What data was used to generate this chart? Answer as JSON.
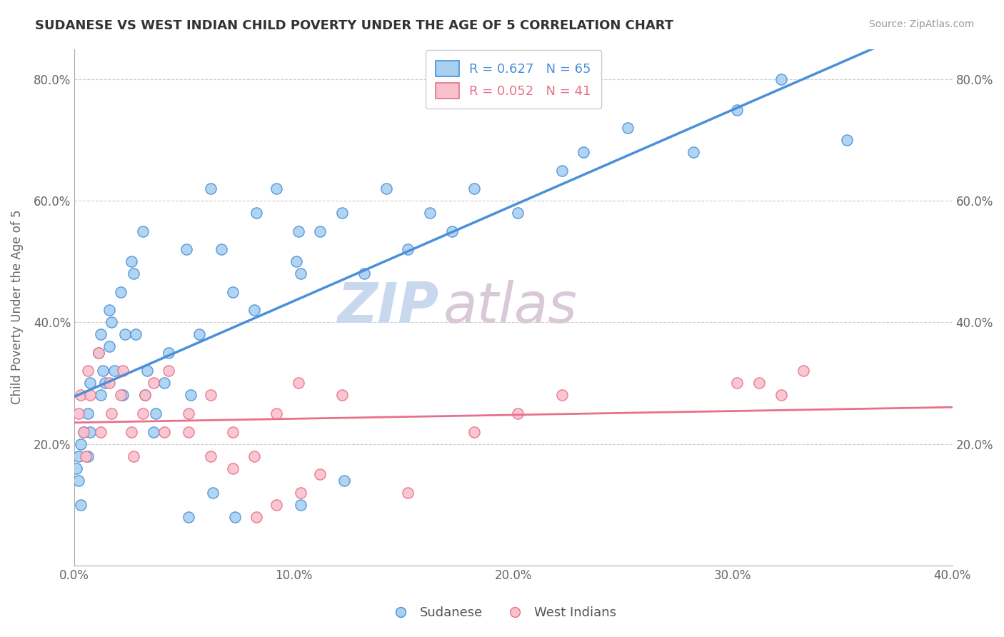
{
  "title": "SUDANESE VS WEST INDIAN CHILD POVERTY UNDER THE AGE OF 5 CORRELATION CHART",
  "source": "Source: ZipAtlas.com",
  "ylabel_label": "Child Poverty Under the Age of 5",
  "xlim": [
    0.0,
    0.4
  ],
  "ylim": [
    0.0,
    0.85
  ],
  "xtick_labels": [
    "0.0%",
    "10.0%",
    "20.0%",
    "30.0%",
    "40.0%"
  ],
  "xtick_values": [
    0.0,
    0.1,
    0.2,
    0.3,
    0.4
  ],
  "ytick_labels": [
    "20.0%",
    "40.0%",
    "60.0%",
    "80.0%"
  ],
  "ytick_values": [
    0.2,
    0.4,
    0.6,
    0.8
  ],
  "sudanese_color": "#A8D0F0",
  "west_indian_color": "#F9C0CC",
  "sudanese_line_color": "#4A90D9",
  "west_indian_line_color": "#E8708A",
  "R_sudanese": 0.627,
  "N_sudanese": 65,
  "R_west_indian": 0.052,
  "N_west_indian": 41,
  "watermark_zip": "ZIP",
  "watermark_atlas": "atlas",
  "watermark_color_zip": "#C8D8EE",
  "watermark_color_atlas": "#D8C8D8",
  "legend_label_sudanese": "Sudanese",
  "legend_label_west_indian": "West Indians",
  "sudanese_x": [
    0.002,
    0.003,
    0.004,
    0.001,
    0.002,
    0.003,
    0.006,
    0.007,
    0.006,
    0.007,
    0.012,
    0.011,
    0.013,
    0.012,
    0.014,
    0.016,
    0.017,
    0.016,
    0.018,
    0.021,
    0.022,
    0.023,
    0.026,
    0.027,
    0.028,
    0.031,
    0.032,
    0.033,
    0.036,
    0.037,
    0.041,
    0.043,
    0.051,
    0.053,
    0.057,
    0.062,
    0.067,
    0.072,
    0.082,
    0.083,
    0.092,
    0.101,
    0.102,
    0.103,
    0.112,
    0.122,
    0.132,
    0.142,
    0.152,
    0.162,
    0.172,
    0.182,
    0.202,
    0.222,
    0.232,
    0.252,
    0.282,
    0.302,
    0.322,
    0.352,
    0.103,
    0.123,
    0.052,
    0.063,
    0.073
  ],
  "sudanese_y": [
    0.18,
    0.2,
    0.22,
    0.16,
    0.14,
    0.1,
    0.25,
    0.22,
    0.18,
    0.3,
    0.28,
    0.35,
    0.32,
    0.38,
    0.3,
    0.42,
    0.4,
    0.36,
    0.32,
    0.45,
    0.28,
    0.38,
    0.5,
    0.48,
    0.38,
    0.55,
    0.28,
    0.32,
    0.22,
    0.25,
    0.3,
    0.35,
    0.52,
    0.28,
    0.38,
    0.62,
    0.52,
    0.45,
    0.42,
    0.58,
    0.62,
    0.5,
    0.55,
    0.48,
    0.55,
    0.58,
    0.48,
    0.62,
    0.52,
    0.58,
    0.55,
    0.62,
    0.58,
    0.65,
    0.68,
    0.72,
    0.68,
    0.75,
    0.8,
    0.7,
    0.1,
    0.14,
    0.08,
    0.12,
    0.08
  ],
  "west_indian_x": [
    0.002,
    0.003,
    0.004,
    0.005,
    0.006,
    0.007,
    0.011,
    0.012,
    0.016,
    0.017,
    0.021,
    0.022,
    0.026,
    0.027,
    0.031,
    0.032,
    0.036,
    0.041,
    0.043,
    0.052,
    0.062,
    0.072,
    0.082,
    0.092,
    0.102,
    0.122,
    0.152,
    0.182,
    0.202,
    0.222,
    0.302,
    0.312,
    0.322,
    0.332,
    0.083,
    0.092,
    0.103,
    0.112,
    0.052,
    0.062,
    0.072
  ],
  "west_indian_y": [
    0.25,
    0.28,
    0.22,
    0.18,
    0.32,
    0.28,
    0.35,
    0.22,
    0.3,
    0.25,
    0.28,
    0.32,
    0.22,
    0.18,
    0.25,
    0.28,
    0.3,
    0.22,
    0.32,
    0.25,
    0.28,
    0.22,
    0.18,
    0.25,
    0.3,
    0.28,
    0.12,
    0.22,
    0.25,
    0.28,
    0.3,
    0.3,
    0.28,
    0.32,
    0.08,
    0.1,
    0.12,
    0.15,
    0.22,
    0.18,
    0.16
  ]
}
